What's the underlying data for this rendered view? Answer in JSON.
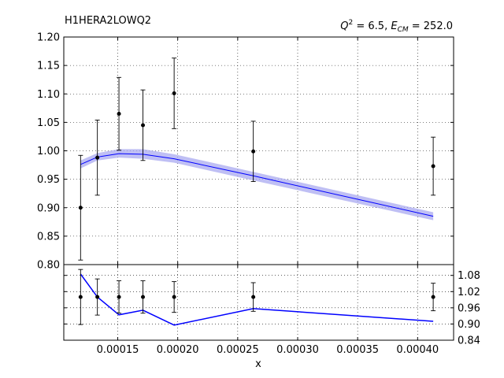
{
  "figure": {
    "title_left": "H1HERA2LOWQ2",
    "title_right": {
      "q_symbol": "Q",
      "q_exponent": "2",
      "q_value": " = 6.5, ",
      "e_symbol": "E",
      "e_subscript": "CM",
      "e_value": " = 252.0"
    },
    "xlabel": "x"
  },
  "colors": {
    "theory_line": "#0000ff",
    "band_fill": "#aaaaf0",
    "data_points": "#000000",
    "grid": "#000000",
    "axes": "#000000"
  },
  "chart_data": [
    {
      "type": "line",
      "panel": "top",
      "x_scale": "linear",
      "grid": true,
      "xlim": [
        0.000105,
        0.00043
      ],
      "ylim": [
        0.8,
        1.2
      ],
      "y_ticks": [
        0.8,
        0.85,
        0.9,
        0.95,
        1.0,
        1.05,
        1.1,
        1.15,
        1.2
      ],
      "y_tick_labels": [
        "0.80",
        "0.85",
        "0.90",
        "0.95",
        "1.00",
        "1.05",
        "1.10",
        "1.15",
        "1.20"
      ],
      "x_ticks": [
        0.00015,
        0.0002,
        0.00025,
        0.0003,
        0.00035,
        0.0004
      ],
      "theory": {
        "x": [
          0.000119,
          0.000133,
          0.000151,
          0.000171,
          0.000197,
          0.000263,
          0.000413
        ],
        "y": [
          0.976,
          0.989,
          0.995,
          0.994,
          0.986,
          0.956,
          0.885
        ],
        "band_upper": [
          0.983,
          0.996,
          1.003,
          1.003,
          0.994,
          0.963,
          0.892
        ],
        "band_lower": [
          0.969,
          0.983,
          0.988,
          0.986,
          0.979,
          0.948,
          0.878
        ]
      },
      "data": {
        "x": [
          0.000119,
          0.000133,
          0.000151,
          0.000171,
          0.000197,
          0.000263,
          0.000413
        ],
        "y": [
          0.9,
          0.988,
          1.065,
          1.045,
          1.101,
          0.999,
          0.973
        ],
        "err_high": [
          0.992,
          1.054,
          1.129,
          1.107,
          1.163,
          1.052,
          1.024
        ],
        "err_low": [
          0.808,
          0.922,
          1.001,
          0.983,
          1.039,
          0.946,
          0.922
        ]
      }
    },
    {
      "type": "line",
      "panel": "bottom",
      "x_scale": "linear",
      "grid": true,
      "xlim": [
        0.000105,
        0.00043
      ],
      "ylim": [
        0.84,
        1.12
      ],
      "y_ticks": [
        0.84,
        0.9,
        0.96,
        1.02,
        1.08
      ],
      "y_tick_labels": [
        "0.84",
        "0.90",
        "0.96",
        "1.02",
        "1.08"
      ],
      "x_ticks": [
        0.00015,
        0.0002,
        0.00025,
        0.0003,
        0.00035,
        0.0004
      ],
      "x_tick_labels": [
        "0.00015",
        "0.00020",
        "0.00025",
        "0.00030",
        "0.00035",
        "0.00040"
      ],
      "ratio_line": {
        "x": [
          0.000119,
          0.000133,
          0.000151,
          0.000171,
          0.000197,
          0.000263,
          0.000413
        ],
        "y": [
          1.085,
          1.0,
          0.934,
          0.951,
          0.896,
          0.957,
          0.91
        ]
      },
      "data": {
        "x": [
          0.000119,
          0.000133,
          0.000151,
          0.000171,
          0.000197,
          0.000263,
          0.000413
        ],
        "y": [
          1.0,
          1.0,
          1.0,
          1.0,
          1.0,
          1.0,
          1.0
        ],
        "err_high": [
          1.102,
          1.067,
          1.06,
          1.06,
          1.057,
          1.053,
          1.051
        ],
        "err_low": [
          0.898,
          0.933,
          0.94,
          0.94,
          0.943,
          0.947,
          0.949
        ]
      }
    }
  ]
}
